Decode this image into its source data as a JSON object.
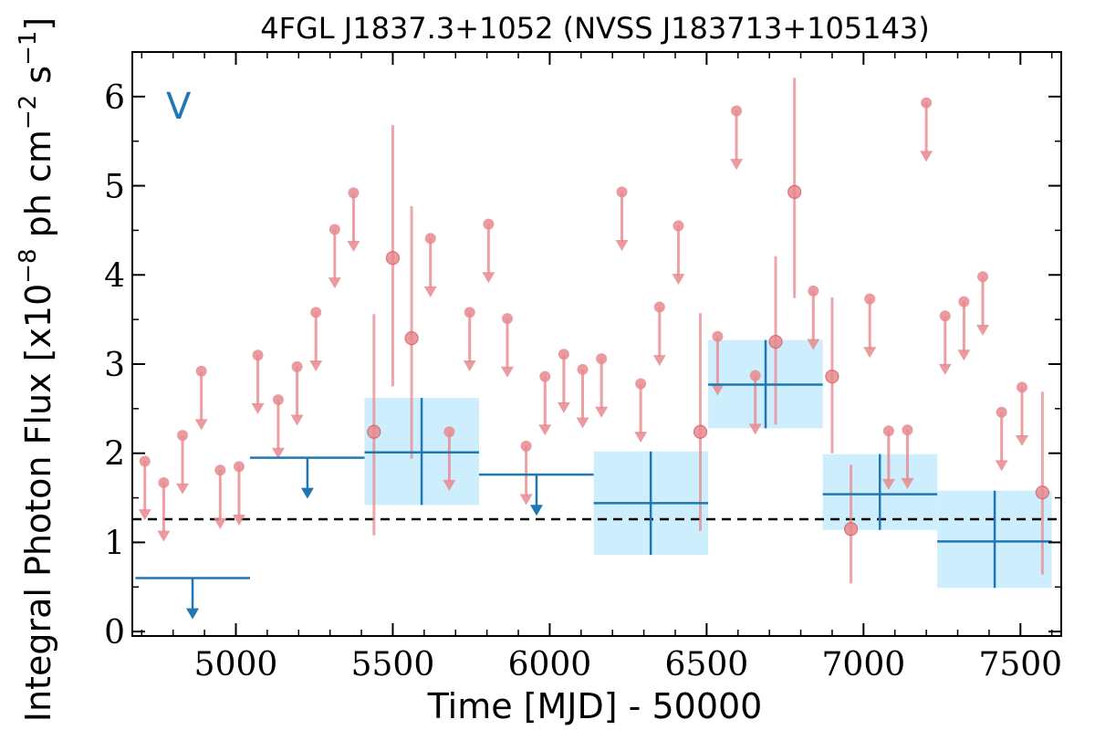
{
  "chart_data": {
    "type": "scatter",
    "title": "4FGL J1837.3+1052 (NVSS J183713+105143)",
    "xlabel": "Time [MJD] - 50000",
    "ylabel": "Integral Photon Flux [x10^-8 ph cm^-2 s^-1]",
    "ylabel_parts": {
      "prefix": "Integral Photon Flux [x10",
      "exp1": "−8",
      "mid": " ph cm",
      "exp2": "−2",
      "mid2": " s",
      "exp3": "−1",
      "suffix": "]"
    },
    "panel_tag": "V",
    "xlim": [
      4670,
      7630
    ],
    "ylim": [
      -0.05,
      6.5
    ],
    "x_ticks": [
      5000,
      5500,
      6000,
      6500,
      7000,
      7500
    ],
    "y_ticks": [
      0,
      1,
      2,
      3,
      4,
      5,
      6
    ],
    "average_flux": 1.26,
    "colors": {
      "monthly": "#e8898e",
      "yearly": "#1f77b4",
      "yearly_band": "#cdeefd",
      "average": "#000000"
    },
    "series": [
      {
        "kind": "monthly_detections",
        "points": [
          {
            "x": 5440,
            "y": 2.24,
            "yerr_low": 1.16,
            "yerr_high": 1.32
          },
          {
            "x": 5500,
            "y": 4.19,
            "yerr_low": 1.44,
            "yerr_high": 1.49
          },
          {
            "x": 5560,
            "y": 3.29,
            "yerr_low": 1.35,
            "yerr_high": 1.48
          },
          {
            "x": 6480,
            "y": 2.24,
            "yerr_low": 1.11,
            "yerr_high": 1.33
          },
          {
            "x": 6720,
            "y": 3.25,
            "yerr_low": 0.93,
            "yerr_high": 0.96
          },
          {
            "x": 6780,
            "y": 4.93,
            "yerr_low": 1.19,
            "yerr_high": 1.28
          },
          {
            "x": 6900,
            "y": 2.86,
            "yerr_low": 0.86,
            "yerr_high": 0.89
          },
          {
            "x": 6960,
            "y": 1.15,
            "yerr_low": 0.61,
            "yerr_high": 0.72
          },
          {
            "x": 7570,
            "y": 1.56,
            "yerr_low": 0.92,
            "yerr_high": 1.13
          }
        ]
      },
      {
        "kind": "monthly_upper_limits",
        "points": [
          {
            "x": 4710,
            "y": 1.91
          },
          {
            "x": 4770,
            "y": 1.67
          },
          {
            "x": 4830,
            "y": 2.2
          },
          {
            "x": 4890,
            "y": 2.92
          },
          {
            "x": 4950,
            "y": 1.81
          },
          {
            "x": 5010,
            "y": 1.85
          },
          {
            "x": 5070,
            "y": 3.1
          },
          {
            "x": 5135,
            "y": 2.6
          },
          {
            "x": 5195,
            "y": 2.97
          },
          {
            "x": 5255,
            "y": 3.58
          },
          {
            "x": 5315,
            "y": 4.51
          },
          {
            "x": 5375,
            "y": 4.92
          },
          {
            "x": 5620,
            "y": 4.41
          },
          {
            "x": 5680,
            "y": 2.24
          },
          {
            "x": 5745,
            "y": 3.58
          },
          {
            "x": 5805,
            "y": 4.57
          },
          {
            "x": 5865,
            "y": 3.51
          },
          {
            "x": 5925,
            "y": 2.08
          },
          {
            "x": 5985,
            "y": 2.86
          },
          {
            "x": 6045,
            "y": 3.11
          },
          {
            "x": 6105,
            "y": 2.94
          },
          {
            "x": 6165,
            "y": 3.06
          },
          {
            "x": 6230,
            "y": 4.93
          },
          {
            "x": 6290,
            "y": 2.78
          },
          {
            "x": 6350,
            "y": 3.64
          },
          {
            "x": 6410,
            "y": 4.55
          },
          {
            "x": 6535,
            "y": 3.31
          },
          {
            "x": 6595,
            "y": 5.84
          },
          {
            "x": 6655,
            "y": 2.87
          },
          {
            "x": 6840,
            "y": 3.82
          },
          {
            "x": 7020,
            "y": 3.73
          },
          {
            "x": 7080,
            "y": 2.25
          },
          {
            "x": 7140,
            "y": 2.26
          },
          {
            "x": 7200,
            "y": 5.93
          },
          {
            "x": 7260,
            "y": 3.54
          },
          {
            "x": 7320,
            "y": 3.7
          },
          {
            "x": 7380,
            "y": 3.98
          },
          {
            "x": 7440,
            "y": 2.46
          },
          {
            "x": 7505,
            "y": 2.74
          }
        ]
      },
      {
        "kind": "yearly_bins",
        "bins": [
          {
            "x_start": 4680,
            "x_end": 5045,
            "x": 4862,
            "y": 0.6,
            "upper_limit": true
          },
          {
            "x_start": 5045,
            "x_end": 5410,
            "x": 5228,
            "y": 1.95,
            "upper_limit": true
          },
          {
            "x_start": 5410,
            "x_end": 5775,
            "x": 5592,
            "y": 2.01,
            "yerr_low": 0.59,
            "yerr_high": 0.61,
            "upper_limit": false
          },
          {
            "x_start": 5775,
            "x_end": 6140,
            "x": 5958,
            "y": 1.76,
            "upper_limit": true
          },
          {
            "x_start": 6140,
            "x_end": 6505,
            "x": 6322,
            "y": 1.44,
            "yerr_low": 0.58,
            "yerr_high": 0.58,
            "upper_limit": false
          },
          {
            "x_start": 6505,
            "x_end": 6870,
            "x": 6688,
            "y": 2.77,
            "yerr_low": 0.49,
            "yerr_high": 0.5,
            "upper_limit": false
          },
          {
            "x_start": 6870,
            "x_end": 7235,
            "x": 7052,
            "y": 1.54,
            "yerr_low": 0.4,
            "yerr_high": 0.45,
            "upper_limit": false
          },
          {
            "x_start": 7235,
            "x_end": 7600,
            "x": 7418,
            "y": 1.01,
            "yerr_low": 0.52,
            "yerr_high": 0.57,
            "upper_limit": false
          }
        ]
      }
    ]
  }
}
